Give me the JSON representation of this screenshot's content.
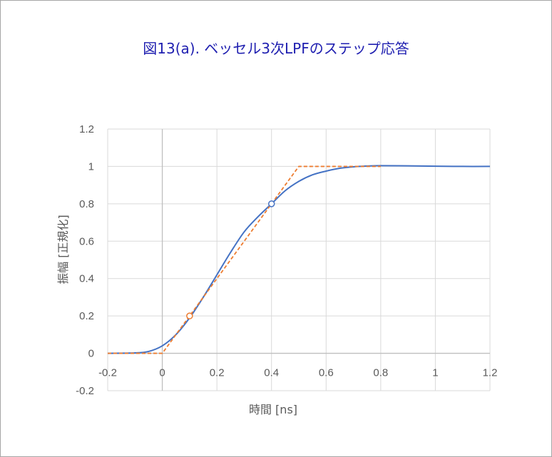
{
  "chart_data": {
    "type": "line",
    "title": "図13(a). ベッセル3次LPFのステップ応答",
    "xlabel": "時間 [ns]",
    "ylabel": "振幅 [正規化]",
    "xlim": [
      -0.2,
      1.2
    ],
    "ylim": [
      -0.2,
      1.2
    ],
    "xticks": [
      -0.2,
      0,
      0.2,
      0.4,
      0.6,
      0.8,
      1,
      1.2
    ],
    "yticks": [
      -0.2,
      0,
      0.2,
      0.4,
      0.6,
      0.8,
      1,
      1.2
    ],
    "xtick_labels": [
      "-0.2",
      "0",
      "0.2",
      "0.4",
      "0.6",
      "0.8",
      "1",
      "1.2"
    ],
    "ytick_labels": [
      "-0.2",
      "0",
      "0.2",
      "0.4",
      "0.6",
      "0.8",
      "1",
      "1.2"
    ],
    "grid": true,
    "legend": "none",
    "series": [
      {
        "color": "#4472c4",
        "style": "solid",
        "x": [
          -0.2,
          -0.1,
          -0.05,
          0,
          0.05,
          0.1,
          0.15,
          0.2,
          0.25,
          0.3,
          0.35,
          0.4,
          0.45,
          0.5,
          0.55,
          0.6,
          0.65,
          0.7,
          0.75,
          0.8,
          0.9,
          1.0,
          1.1,
          1.2
        ],
        "y": [
          0,
          0.002,
          0.01,
          0.04,
          0.1,
          0.19,
          0.3,
          0.42,
          0.54,
          0.65,
          0.73,
          0.8,
          0.87,
          0.92,
          0.955,
          0.975,
          0.99,
          0.998,
          1.002,
          1.004,
          1.003,
          1.001,
          1.0,
          1.0
        ]
      },
      {
        "color": "#ed7d31",
        "style": "dashed",
        "x": [
          -0.2,
          0,
          0.1,
          0.4,
          0.5,
          0.8
        ],
        "y": [
          0,
          0,
          0.2,
          0.8,
          1,
          1
        ]
      }
    ],
    "markers": [
      {
        "x": 0.1,
        "y": 0.2,
        "color": "#ed7d31"
      },
      {
        "x": 0.4,
        "y": 0.8,
        "color": "#4472c4"
      }
    ]
  }
}
